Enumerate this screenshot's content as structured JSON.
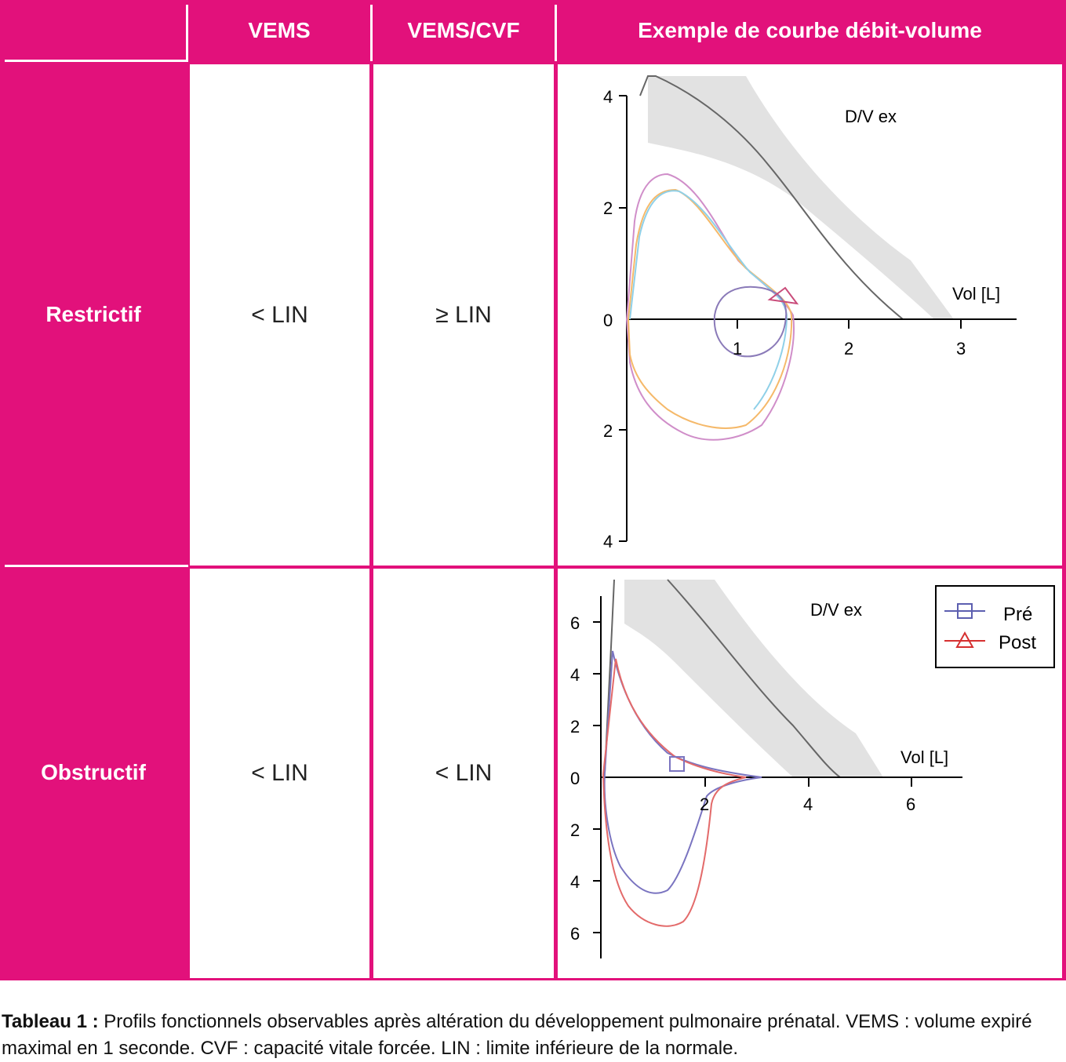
{
  "table": {
    "headers": [
      "",
      "VEMS",
      "VEMS/CVF",
      "Exemple de courbe débit-volume"
    ],
    "rows": [
      {
        "label": "Restrictif",
        "vems": "< LIN",
        "ratio": "≥ LIN"
      },
      {
        "label": "Obstructif",
        "vems": "< LIN",
        "ratio": "< LIN"
      }
    ]
  },
  "chart1": {
    "title": "D/V ex",
    "xlabel": "Vol [L]",
    "yticks": [
      "4",
      "2",
      "0",
      "2",
      "4"
    ],
    "xticks": [
      "1",
      "2",
      "3"
    ]
  },
  "chart2": {
    "title": "D/V ex",
    "xlabel": "Vol [L]",
    "yticks": [
      "6",
      "4",
      "2",
      "0",
      "2",
      "4",
      "6"
    ],
    "xticks": [
      "2",
      "4",
      "6"
    ],
    "legend": [
      "Pré",
      "Post"
    ]
  },
  "caption": {
    "label": "Tableau 1 :",
    "text": " Profils fonctionnels observables après altération du développement pulmonaire prénatal. VEMS : volume expiré maximal en 1 seconde. CVF : capacité vitale forcée. LIN : limite inférieure de la normale."
  },
  "chart_data": [
    {
      "type": "line",
      "title": "D/V ex",
      "xlabel": "Vol [L]",
      "xlim": [
        0,
        3.5
      ],
      "ylim": [
        -4,
        4
      ],
      "series": [
        {
          "x": [
            0,
            0.15,
            0.4,
            0.6,
            0.8,
            1.0,
            1.2,
            1.4,
            1.5
          ],
          "y": [
            0,
            2.5,
            2.3,
            1.9,
            1.4,
            1.0,
            0.6,
            0.3,
            0
          ]
        },
        {
          "x": [
            0,
            0.1,
            0.3,
            0.6,
            0.9,
            1.1,
            1.2,
            1.3,
            1.4
          ],
          "y": [
            0,
            2.0,
            2.7,
            2.4,
            1.6,
            1.0,
            0.6,
            0.3,
            0
          ]
        }
      ]
    },
    {
      "type": "line",
      "title": "D/V ex",
      "xlabel": "Vol [L]",
      "xlim": [
        0,
        7
      ],
      "ylim": [
        -7,
        7
      ],
      "series": [
        {
          "name": "Pré",
          "x": [
            0,
            0.5,
            1.0,
            1.5,
            2.0,
            2.5,
            3.0
          ],
          "y": [
            0,
            4.8,
            1.8,
            0.6,
            0.3,
            0.1,
            0
          ]
        },
        {
          "name": "Post",
          "x": [
            0,
            0.6,
            1.2,
            1.8,
            2.4,
            3.0
          ],
          "y": [
            0,
            4.5,
            1.5,
            0.6,
            0.2,
            0
          ]
        }
      ],
      "legend": "top-right"
    }
  ]
}
